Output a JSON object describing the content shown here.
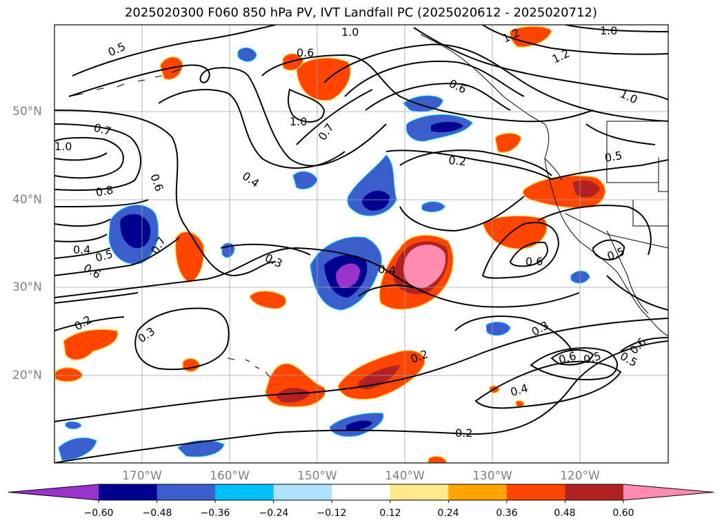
{
  "title": "2025020300 F060 850 hPa PV, IVT Landfall PC (2025020612 - 2025020712)",
  "lat_labels": [
    "50°N",
    "40°N",
    "30°N",
    "20°N"
  ],
  "lon_labels": [
    "170°W",
    "160°W",
    "150°W",
    "140°W",
    "130°W",
    "120°W"
  ],
  "colorbar": {
    "ticks": [
      "−0.60",
      "−0.48",
      "−0.36",
      "−0.24",
      "−0.12",
      "0.12",
      "0.24",
      "0.36",
      "0.48",
      "0.60"
    ],
    "colors": [
      "#9933cc",
      "#000090",
      "#3a5fcd",
      "#00bfff",
      "#b0e2ff",
      "#ffffff",
      "#ffe98a",
      "#ffa500",
      "#ff4500",
      "#b22222",
      "#ff8cb0"
    ]
  },
  "contour_labels": [
    "0.5",
    "1.0",
    "1.2",
    "1.2",
    "1.0",
    "0.6",
    "0.6",
    "1.0",
    "1.0",
    "0.7",
    "1.0",
    "0.7",
    "0.2",
    "0.6",
    "0.4",
    "0.5",
    "0.8",
    "0.4",
    "0.5",
    "0.6",
    "0.7",
    "0.3",
    "0.4",
    "0.6",
    "0.5",
    "0.2",
    "0.3",
    "0.2",
    "0.3",
    "0.6",
    "0.5",
    "0.5",
    "0.6",
    "0.4",
    "0.2"
  ]
}
